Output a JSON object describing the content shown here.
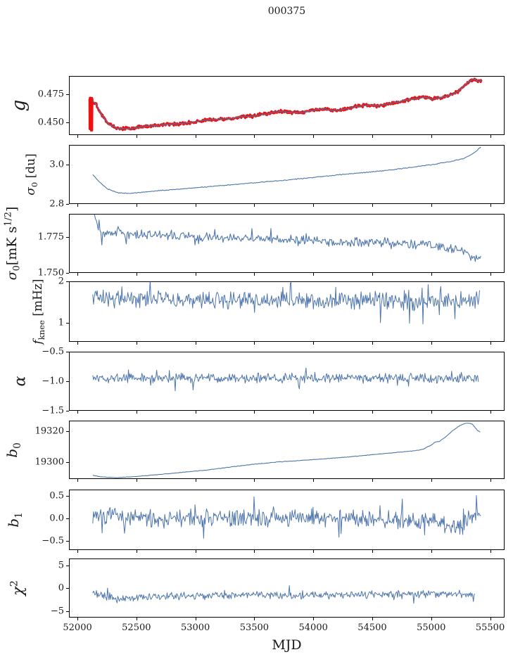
{
  "title": "000375",
  "xlabel": "MJD",
  "colors": {
    "blue": "#4f76ac",
    "red": "#ee1111",
    "axis": "#000000",
    "background": "#ffffff"
  },
  "chart_data": {
    "type": "line",
    "title": "000375",
    "xlabel": "MJD",
    "x": {
      "lim": [
        51928,
        55622
      ],
      "ticks": [
        {
          "v": 52000,
          "l": "52000"
        },
        {
          "v": 52500,
          "l": "52500"
        },
        {
          "v": 53000,
          "l": "53000"
        },
        {
          "v": 53500,
          "l": "53500"
        },
        {
          "v": 54000,
          "l": "54000"
        },
        {
          "v": 54500,
          "l": "54500"
        },
        {
          "v": 55000,
          "l": "55000"
        },
        {
          "v": 55500,
          "l": "55500"
        }
      ]
    },
    "panels": [
      {
        "id": "g",
        "ylabel": "g",
        "ylabel_rich": [
          {
            "t": "g",
            "i": true
          }
        ],
        "ylim": [
          0.4388,
          0.491
        ],
        "yticks": [
          {
            "v": 0.475,
            "l": "0.475"
          },
          {
            "v": 0.45,
            "l": "0.450"
          }
        ],
        "trend": [
          [
            52128,
            0.4685
          ],
          [
            52160,
            0.466
          ],
          [
            52200,
            0.4575
          ],
          [
            52260,
            0.449
          ],
          [
            52330,
            0.4448
          ],
          [
            52430,
            0.4443
          ],
          [
            52530,
            0.4458
          ],
          [
            52650,
            0.4473
          ],
          [
            52780,
            0.4483
          ],
          [
            52900,
            0.4492
          ],
          [
            53000,
            0.4505
          ],
          [
            53080,
            0.452
          ],
          [
            53180,
            0.4528
          ],
          [
            53280,
            0.4532
          ],
          [
            53380,
            0.4548
          ],
          [
            53480,
            0.4556
          ],
          [
            53580,
            0.4572
          ],
          [
            53680,
            0.4592
          ],
          [
            53740,
            0.4597
          ],
          [
            53820,
            0.4588
          ],
          [
            53900,
            0.4586
          ],
          [
            54000,
            0.4608
          ],
          [
            54080,
            0.4618
          ],
          [
            54170,
            0.4607
          ],
          [
            54270,
            0.4616
          ],
          [
            54370,
            0.4642
          ],
          [
            54470,
            0.4652
          ],
          [
            54560,
            0.4646
          ],
          [
            54660,
            0.4668
          ],
          [
            54760,
            0.469
          ],
          [
            54860,
            0.471
          ],
          [
            54940,
            0.4722
          ],
          [
            55010,
            0.4706
          ],
          [
            55080,
            0.4718
          ],
          [
            55150,
            0.4738
          ],
          [
            55220,
            0.4768
          ],
          [
            55280,
            0.4825
          ],
          [
            55330,
            0.4868
          ],
          [
            55370,
            0.4882
          ],
          [
            55400,
            0.486
          ],
          [
            55430,
            0.4872
          ]
        ],
        "series": [
          {
            "name": "gain-raw",
            "color_key": "red",
            "width": 3.0,
            "n": 700,
            "noise": 0.0011,
            "seed": 101,
            "xstart": 52128,
            "xend": 55430,
            "spike_intro": {
              "x0": 52102,
              "x1": 52126,
              "lo": 0.4437,
              "hi": 0.4716,
              "zigzags": 16
            }
          },
          {
            "name": "gain-smoothed",
            "color_key": "blue",
            "width": 1.1,
            "n": 460,
            "noise": 0.00035,
            "seed": 102,
            "xstart": 52128,
            "xend": 55430
          }
        ]
      },
      {
        "id": "sigma0-du",
        "ylabel": "σ0 [du]",
        "ylabel_rich": [
          {
            "t": "σ",
            "i": true
          },
          {
            "t": "0",
            "sub": true
          },
          {
            "t": " [du]"
          }
        ],
        "ylim": [
          2.8,
          3.098
        ],
        "yticks": [
          {
            "v": 3.0,
            "l": "3.0"
          },
          {
            "v": 2.8,
            "l": "2.8"
          }
        ],
        "trend": [
          [
            52130,
            2.948
          ],
          [
            52180,
            2.915
          ],
          [
            52250,
            2.878
          ],
          [
            52340,
            2.856
          ],
          [
            52430,
            2.853
          ],
          [
            52530,
            2.858
          ],
          [
            52650,
            2.865
          ],
          [
            52800,
            2.872
          ],
          [
            53000,
            2.882
          ],
          [
            53200,
            2.892
          ],
          [
            53400,
            2.902
          ],
          [
            53600,
            2.912
          ],
          [
            53800,
            2.922
          ],
          [
            54000,
            2.934
          ],
          [
            54200,
            2.946
          ],
          [
            54400,
            2.957
          ],
          [
            54600,
            2.968
          ],
          [
            54800,
            2.982
          ],
          [
            55000,
            2.998
          ],
          [
            55150,
            3.012
          ],
          [
            55280,
            3.03
          ],
          [
            55360,
            3.055
          ],
          [
            55420,
            3.088
          ]
        ],
        "series": [
          {
            "name": "sigma0-du-line",
            "color_key": "blue",
            "width": 1.1,
            "n": 420,
            "noise": 0.0016,
            "seed": 2,
            "xstart": 52130,
            "xend": 55420
          }
        ]
      },
      {
        "id": "sigma0-mk",
        "ylabel": "σ0 [mK s1/2]",
        "ylabel_rich": [
          {
            "t": "σ",
            "i": true
          },
          {
            "t": "0",
            "sub": true
          },
          {
            "t": "[mK s"
          },
          {
            "t": "1/2",
            "sup": true
          },
          {
            "t": "]"
          }
        ],
        "ylim": [
          1.75,
          1.7915
        ],
        "yticks": [
          {
            "v": 1.775,
            "l": "1.775"
          },
          {
            "v": 1.75,
            "l": "1.750"
          }
        ],
        "trend": [
          [
            52130,
            1.7995
          ],
          [
            52150,
            1.79
          ],
          [
            52175,
            1.7805
          ],
          [
            52210,
            1.7768
          ],
          [
            52300,
            1.7772
          ],
          [
            52360,
            1.779
          ],
          [
            52420,
            1.7768
          ],
          [
            52500,
            1.7772
          ],
          [
            52700,
            1.7762
          ],
          [
            53000,
            1.7758
          ],
          [
            53300,
            1.7745
          ],
          [
            53600,
            1.7738
          ],
          [
            53900,
            1.7728
          ],
          [
            54200,
            1.7722
          ],
          [
            54500,
            1.7712
          ],
          [
            54800,
            1.771
          ],
          [
            55000,
            1.7695
          ],
          [
            55150,
            1.7672
          ],
          [
            55250,
            1.765
          ],
          [
            55330,
            1.7618
          ],
          [
            55390,
            1.7602
          ],
          [
            55420,
            1.7608
          ]
        ],
        "series": [
          {
            "name": "sigma0-mk-line",
            "color_key": "blue",
            "width": 1.1,
            "n": 430,
            "noise": 0.0026,
            "spike_p": 0.04,
            "spike_amp": 0.005,
            "seed": 3,
            "xstart": 52130,
            "xend": 55420
          }
        ]
      },
      {
        "id": "fknee",
        "ylabel": "fknee [mHz]",
        "ylabel_rich": [
          {
            "t": "f",
            "i": true
          },
          {
            "t": "knee",
            "sub": true
          },
          {
            "t": " [mHz]"
          }
        ],
        "ylim": [
          0.537,
          2.0
        ],
        "yticks": [
          {
            "v": 2,
            "l": "2"
          },
          {
            "v": 1,
            "l": "1"
          }
        ],
        "trend": [
          [
            52130,
            1.62
          ],
          [
            52300,
            1.57
          ],
          [
            52600,
            1.56
          ],
          [
            53000,
            1.55
          ],
          [
            53500,
            1.54
          ],
          [
            54000,
            1.52
          ],
          [
            54500,
            1.53
          ],
          [
            55000,
            1.52
          ],
          [
            55410,
            1.55
          ]
        ],
        "series": [
          {
            "name": "fknee-line",
            "color_key": "blue",
            "width": 1.0,
            "n": 520,
            "noise": 0.155,
            "spike_p": 0.05,
            "spike_amp": 0.33,
            "seed": 4,
            "xstart": 52130,
            "xend": 55410
          }
        ]
      },
      {
        "id": "alpha",
        "ylabel": "α",
        "ylabel_rich": [
          {
            "t": "α",
            "i": true
          }
        ],
        "ylim": [
          -1.5,
          -0.5
        ],
        "yticks": [
          {
            "v": -0.5,
            "l": "−0.5"
          },
          {
            "v": -1.0,
            "l": "−1.0"
          },
          {
            "v": -1.5,
            "l": "−1.5"
          }
        ],
        "trend": [
          [
            52130,
            -0.945
          ],
          [
            53000,
            -0.95
          ],
          [
            54000,
            -0.945
          ],
          [
            55000,
            -0.95
          ],
          [
            55400,
            -0.94
          ]
        ],
        "series": [
          {
            "name": "alpha-line",
            "color_key": "blue",
            "width": 1.0,
            "n": 520,
            "noise": 0.062,
            "spike_p": 0.05,
            "spike_amp": 0.12,
            "seed": 5,
            "xstart": 52130,
            "xend": 55400
          }
        ]
      },
      {
        "id": "b0",
        "ylabel": "b0",
        "ylabel_rich": [
          {
            "t": "b",
            "i": true
          },
          {
            "t": "0",
            "sub": true
          }
        ],
        "ylim": [
          19289.5,
          19326.5
        ],
        "yticks": [
          {
            "v": 19320,
            "l": "19320"
          },
          {
            "v": 19300,
            "l": "19300"
          }
        ],
        "trend": [
          [
            52130,
            19291.9
          ],
          [
            52210,
            19290.7
          ],
          [
            52330,
            19290.4
          ],
          [
            52480,
            19291.0
          ],
          [
            52700,
            19292.4
          ],
          [
            52900,
            19293.8
          ],
          [
            53100,
            19295.2
          ],
          [
            53300,
            19297.1
          ],
          [
            53500,
            19298.9
          ],
          [
            53700,
            19300.3
          ],
          [
            53900,
            19301.3
          ],
          [
            54100,
            19302.3
          ],
          [
            54300,
            19303.5
          ],
          [
            54500,
            19304.9
          ],
          [
            54700,
            19306.3
          ],
          [
            54850,
            19307.3
          ],
          [
            54930,
            19308.4
          ],
          [
            55000,
            19311.0
          ],
          [
            55030,
            19312.8
          ],
          [
            55070,
            19313.4
          ],
          [
            55120,
            19316.0
          ],
          [
            55180,
            19320.0
          ],
          [
            55240,
            19323.3
          ],
          [
            55290,
            19324.8
          ],
          [
            55320,
            19325.0
          ],
          [
            55350,
            19324.2
          ],
          [
            55390,
            19320.5
          ],
          [
            55415,
            19319.3
          ]
        ],
        "series": [
          {
            "name": "b0-line",
            "color_key": "blue",
            "width": 1.1,
            "n": 430,
            "noise": 0.12,
            "seed": 6,
            "xstart": 52130,
            "xend": 55415
          }
        ]
      },
      {
        "id": "b1",
        "ylabel": "b1",
        "ylabel_rich": [
          {
            "t": "b",
            "i": true
          },
          {
            "t": "1",
            "sub": true
          }
        ],
        "ylim": [
          -0.706,
          0.643
        ],
        "yticks": [
          {
            "v": 0.5,
            "l": "0.5"
          },
          {
            "v": 0.0,
            "l": "0.0"
          },
          {
            "v": -0.5,
            "l": "−0.5"
          }
        ],
        "trend": [
          [
            52130,
            0.1
          ],
          [
            52250,
            0.03
          ],
          [
            52500,
            0
          ],
          [
            53000,
            -0.01
          ],
          [
            53500,
            0.01
          ],
          [
            54000,
            0
          ],
          [
            54300,
            0.02
          ],
          [
            54700,
            -0.02
          ],
          [
            54950,
            -0.05
          ],
          [
            55100,
            -0.12
          ],
          [
            55200,
            -0.22
          ],
          [
            55260,
            -0.18
          ],
          [
            55300,
            -0.05
          ],
          [
            55340,
            0.08
          ],
          [
            55380,
            0.15
          ],
          [
            55420,
            0.22
          ]
        ],
        "series": [
          {
            "name": "b1-line",
            "color_key": "blue",
            "width": 1.0,
            "n": 540,
            "noise": 0.145,
            "spike_p": 0.05,
            "spike_amp": 0.25,
            "seed": 7,
            "xstart": 52130,
            "xend": 55420
          }
        ]
      },
      {
        "id": "chi2",
        "ylabel": "χ2",
        "ylabel_rich": [
          {
            "t": "χ",
            "i": true
          },
          {
            "t": "2",
            "sup": true
          }
        ],
        "ylim": [
          -6.4,
          6.5
        ],
        "yticks": [
          {
            "v": 5,
            "l": "5"
          },
          {
            "v": 0,
            "l": "0"
          },
          {
            "v": -5,
            "l": "−5"
          }
        ],
        "trend": [
          [
            52130,
            -0.85
          ],
          [
            52230,
            -1.75
          ],
          [
            52330,
            -2.35
          ],
          [
            52430,
            -2.1
          ],
          [
            52550,
            -1.95
          ],
          [
            52700,
            -1.75
          ],
          [
            53000,
            -1.65
          ],
          [
            53300,
            -1.45
          ],
          [
            53600,
            -1.55
          ],
          [
            54000,
            -1.5
          ],
          [
            54400,
            -1.35
          ],
          [
            54700,
            -1.35
          ],
          [
            55000,
            -1.25
          ],
          [
            55200,
            -1.3
          ],
          [
            55370,
            -1.15
          ]
        ],
        "series": [
          {
            "name": "chi2-line",
            "color_key": "blue",
            "width": 1.0,
            "n": 520,
            "noise": 0.62,
            "spike_p": 0.04,
            "spike_amp": 1.3,
            "seed": 8,
            "xstart": 52130,
            "xend": 55370
          }
        ]
      }
    ]
  }
}
